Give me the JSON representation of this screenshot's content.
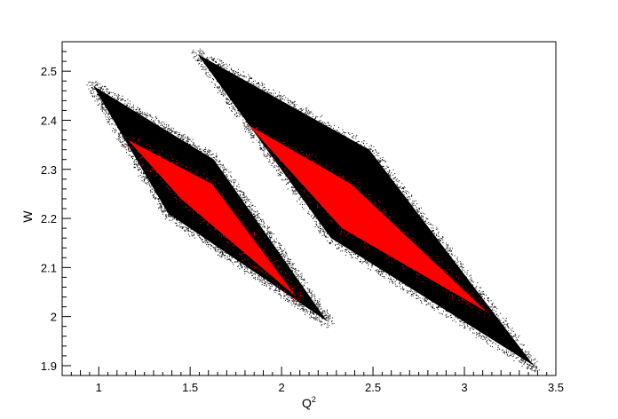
{
  "chart_data": {
    "type": "scatter",
    "title": "",
    "xlabel": "Q",
    "xlabel_superscript": "2",
    "ylabel": "W",
    "xlim": [
      0.8,
      3.5
    ],
    "ylim": [
      1.88,
      2.56
    ],
    "grid": false,
    "legend": "none",
    "x_ticks": [
      "1",
      "1.5",
      "2",
      "2.5",
      "3",
      "3.5"
    ],
    "y_ticks": [
      "1.9",
      "2",
      "2.1",
      "2.2",
      "2.3",
      "2.4",
      "2.5"
    ],
    "series": [
      {
        "color": "#000000",
        "regions": [
          {
            "outline": [
              [
                0.97,
                2.47
              ],
              [
                1.63,
                2.32
              ],
              [
                2.25,
                1.99
              ],
              [
                1.38,
                2.21
              ]
            ]
          },
          {
            "outline": [
              [
                1.54,
                2.535
              ],
              [
                2.48,
                2.34
              ],
              [
                3.38,
                1.9
              ],
              [
                2.27,
                2.16
              ]
            ]
          }
        ]
      },
      {
        "color": "#ff0000",
        "regions": [
          {
            "outline": [
              [
                1.16,
                2.36
              ],
              [
                1.62,
                2.27
              ],
              [
                2.08,
                2.04
              ],
              [
                1.45,
                2.24
              ]
            ]
          },
          {
            "outline": [
              [
                1.82,
                2.39
              ],
              [
                2.38,
                2.27
              ],
              [
                3.12,
                2.01
              ],
              [
                2.33,
                2.18
              ]
            ]
          }
        ]
      }
    ]
  }
}
